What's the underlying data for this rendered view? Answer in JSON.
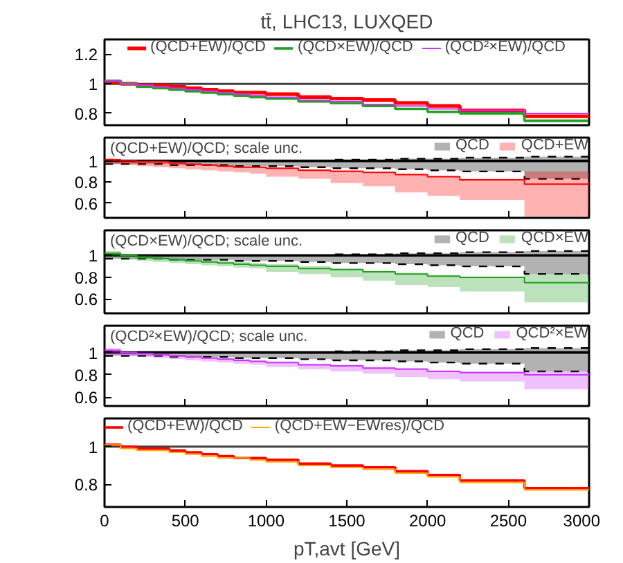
{
  "chart_data": [
    {
      "type": "step",
      "title": "tt̄, LHC13, LUXQED",
      "x": [
        0,
        100,
        200,
        300,
        400,
        500,
        600,
        700,
        800,
        900,
        1000,
        1200,
        1400,
        1600,
        1800,
        2000,
        2200,
        2600,
        3000
      ],
      "xlim": [
        0,
        3000
      ],
      "xticks": [
        0,
        500,
        1000,
        1500,
        2000,
        2500,
        3000
      ],
      "ylim": [
        0.72,
        1.3
      ],
      "yticks": [
        0.8,
        1,
        1.2
      ],
      "tick_labels": "y",
      "legend": "top",
      "ref_lines": [
        {
          "axis": "y",
          "value": 1,
          "color": "#404040"
        }
      ],
      "series": [
        {
          "name": "(QCD+EW)/QCD",
          "color": "#ff0000",
          "values": [
            1.01,
            1.0,
            0.99,
            0.99,
            0.98,
            0.97,
            0.96,
            0.95,
            0.94,
            0.94,
            0.93,
            0.91,
            0.9,
            0.89,
            0.87,
            0.85,
            0.82,
            0.78,
            0.78
          ]
        },
        {
          "name": "(QCD×EW)/QCD",
          "color": "#22a022",
          "values": [
            1.02,
            1.0,
            0.98,
            0.97,
            0.96,
            0.95,
            0.94,
            0.93,
            0.92,
            0.91,
            0.9,
            0.88,
            0.87,
            0.85,
            0.83,
            0.81,
            0.8,
            0.75,
            0.75
          ]
        },
        {
          "name": "(QCD²×EW)/QCD",
          "color": "#cc33ff",
          "values": [
            1.02,
            1.0,
            0.99,
            0.98,
            0.97,
            0.96,
            0.95,
            0.94,
            0.93,
            0.92,
            0.91,
            0.89,
            0.88,
            0.86,
            0.85,
            0.83,
            0.82,
            0.8,
            0.8
          ]
        }
      ]
    },
    {
      "type": "step",
      "legend_title": "(QCD+EW)/QCD; scale unc.",
      "x": [
        0,
        100,
        200,
        300,
        400,
        500,
        600,
        700,
        800,
        900,
        1000,
        1200,
        1400,
        1600,
        1800,
        2000,
        2200,
        2600,
        3000
      ],
      "xlim": [
        0,
        3000
      ],
      "xticks": [
        0,
        500,
        1000,
        1500,
        2000,
        2500,
        3000
      ],
      "ylim": [
        0.46,
        1.22
      ],
      "yticks": [
        0.6,
        0.8,
        1
      ],
      "tick_labels": "y",
      "legend": "top right",
      "series": [
        {
          "name": "QCD",
          "color": "#000000",
          "values": [
            1,
            1,
            1,
            1,
            1,
            1,
            1,
            1,
            1,
            1,
            1,
            1,
            1,
            1,
            1,
            1,
            1,
            1,
            1
          ],
          "lower": [
            0.97,
            0.97,
            0.97,
            0.97,
            0.96,
            0.96,
            0.96,
            0.96,
            0.95,
            0.95,
            0.95,
            0.94,
            0.93,
            0.93,
            0.92,
            0.91,
            0.9,
            0.83,
            0.83
          ],
          "upper": [
            1.01,
            1.0,
            1.0,
            1.0,
            1.0,
            1.0,
            1.0,
            1.0,
            1.0,
            1.0,
            1.0,
            1.0,
            1.01,
            1.01,
            1.02,
            1.02,
            1.03,
            1.04,
            1.04
          ]
        },
        {
          "color": "#000000",
          "line_style": "dashed",
          "values": [
            0.97,
            0.97,
            0.97,
            0.97,
            0.96,
            0.96,
            0.96,
            0.96,
            0.95,
            0.95,
            0.95,
            0.94,
            0.93,
            0.93,
            0.92,
            0.91,
            0.9,
            0.83,
            0.83
          ]
        },
        {
          "color": "#000000",
          "line_style": "dashed",
          "values": [
            1.01,
            1.0,
            1.0,
            1.0,
            1.0,
            1.0,
            1.0,
            1.0,
            1.0,
            1.0,
            1.0,
            1.0,
            1.01,
            1.01,
            1.02,
            1.02,
            1.03,
            1.04,
            1.04
          ]
        },
        {
          "name": "QCD+EW",
          "color": "#ff0000",
          "values": [
            1.01,
            1.0,
            0.99,
            0.99,
            0.98,
            0.97,
            0.96,
            0.95,
            0.94,
            0.94,
            0.93,
            0.91,
            0.9,
            0.89,
            0.87,
            0.85,
            0.82,
            0.78,
            0.78
          ],
          "lower": [
            0.97,
            0.96,
            0.95,
            0.94,
            0.93,
            0.92,
            0.91,
            0.9,
            0.89,
            0.88,
            0.85,
            0.83,
            0.79,
            0.76,
            0.7,
            0.67,
            0.63,
            0.47,
            0.47
          ],
          "upper": [
            1.02,
            1.01,
            1.0,
            0.99,
            0.98,
            0.97,
            0.97,
            0.96,
            0.95,
            0.94,
            0.93,
            0.92,
            0.91,
            0.89,
            0.88,
            0.86,
            0.83,
            0.9,
            0.9
          ]
        }
      ]
    },
    {
      "type": "step",
      "legend_title": "(QCD×EW)/QCD; scale unc.",
      "x": [
        0,
        100,
        200,
        300,
        400,
        500,
        600,
        700,
        800,
        900,
        1000,
        1200,
        1400,
        1600,
        1800,
        2000,
        2200,
        2600,
        3000
      ],
      "xlim": [
        0,
        3000
      ],
      "xticks": [
        0,
        500,
        1000,
        1500,
        2000,
        2500,
        3000
      ],
      "ylim": [
        0.47,
        1.23
      ],
      "yticks": [
        0.6,
        0.8,
        1
      ],
      "tick_labels": "y",
      "legend": "top right",
      "series": [
        {
          "name": "QCD",
          "color": "#000000",
          "values": [
            1,
            1,
            1,
            1,
            1,
            1,
            1,
            1,
            1,
            1,
            1,
            1,
            1,
            1,
            1,
            1,
            1,
            1,
            1
          ],
          "lower": [
            0.97,
            0.97,
            0.97,
            0.97,
            0.96,
            0.96,
            0.96,
            0.96,
            0.95,
            0.95,
            0.95,
            0.94,
            0.93,
            0.93,
            0.92,
            0.91,
            0.9,
            0.83,
            0.83
          ],
          "upper": [
            1.01,
            1.0,
            1.0,
            1.0,
            1.0,
            1.0,
            1.0,
            1.0,
            1.0,
            1.0,
            1.0,
            1.0,
            1.01,
            1.01,
            1.02,
            1.02,
            1.03,
            1.04,
            1.04
          ]
        },
        {
          "color": "#000000",
          "line_style": "dashed",
          "values": [
            0.97,
            0.97,
            0.97,
            0.97,
            0.96,
            0.96,
            0.96,
            0.96,
            0.95,
            0.95,
            0.95,
            0.94,
            0.93,
            0.93,
            0.92,
            0.91,
            0.9,
            0.83,
            0.83
          ]
        },
        {
          "color": "#000000",
          "line_style": "dashed",
          "values": [
            1.01,
            1.0,
            1.0,
            1.0,
            1.0,
            1.0,
            1.0,
            1.0,
            1.0,
            1.0,
            1.0,
            1.0,
            1.01,
            1.01,
            1.02,
            1.02,
            1.03,
            1.04,
            1.04
          ]
        },
        {
          "name": "QCD×EW",
          "color": "#22a022",
          "values": [
            1.02,
            1.0,
            0.98,
            0.97,
            0.96,
            0.95,
            0.94,
            0.93,
            0.92,
            0.91,
            0.9,
            0.88,
            0.87,
            0.85,
            0.83,
            0.81,
            0.8,
            0.75,
            0.75
          ],
          "lower": [
            0.98,
            0.96,
            0.95,
            0.94,
            0.93,
            0.92,
            0.91,
            0.9,
            0.89,
            0.88,
            0.85,
            0.83,
            0.8,
            0.77,
            0.73,
            0.71,
            0.67,
            0.57,
            0.57
          ],
          "upper": [
            1.04,
            1.01,
            1.0,
            0.99,
            0.98,
            0.97,
            0.96,
            0.95,
            0.94,
            0.93,
            0.92,
            0.9,
            0.88,
            0.86,
            0.84,
            0.82,
            0.8,
            0.83,
            0.83
          ]
        }
      ]
    },
    {
      "type": "step",
      "legend_title": "(QCD²×EW)/QCD; scale unc.",
      "x": [
        0,
        100,
        200,
        300,
        400,
        500,
        600,
        700,
        800,
        900,
        1000,
        1200,
        1400,
        1600,
        1800,
        2000,
        2200,
        2600,
        3000
      ],
      "xlim": [
        0,
        3000
      ],
      "xticks": [
        0,
        500,
        1000,
        1500,
        2000,
        2500,
        3000
      ],
      "ylim": [
        0.52,
        1.24
      ],
      "yticks": [
        0.6,
        0.8,
        1
      ],
      "tick_labels": "y",
      "legend": "top right",
      "series": [
        {
          "name": "QCD",
          "color": "#000000",
          "values": [
            1,
            1,
            1,
            1,
            1,
            1,
            1,
            1,
            1,
            1,
            1,
            1,
            1,
            1,
            1,
            1,
            1,
            1,
            1
          ],
          "lower": [
            0.97,
            0.97,
            0.97,
            0.97,
            0.96,
            0.96,
            0.96,
            0.96,
            0.95,
            0.95,
            0.95,
            0.94,
            0.93,
            0.93,
            0.92,
            0.91,
            0.9,
            0.83,
            0.83
          ],
          "upper": [
            1.01,
            1.0,
            1.0,
            1.0,
            1.0,
            1.0,
            1.0,
            1.0,
            1.0,
            1.0,
            1.0,
            1.0,
            1.01,
            1.01,
            1.02,
            1.02,
            1.03,
            1.04,
            1.04
          ]
        },
        {
          "color": "#000000",
          "line_style": "dashed",
          "values": [
            0.97,
            0.97,
            0.97,
            0.97,
            0.96,
            0.96,
            0.96,
            0.96,
            0.95,
            0.95,
            0.95,
            0.94,
            0.93,
            0.93,
            0.92,
            0.91,
            0.9,
            0.83,
            0.83
          ]
        },
        {
          "color": "#000000",
          "line_style": "dashed",
          "values": [
            1.01,
            1.0,
            1.0,
            1.0,
            1.0,
            1.0,
            1.0,
            1.0,
            1.0,
            1.0,
            1.0,
            1.0,
            1.01,
            1.01,
            1.02,
            1.02,
            1.03,
            1.04,
            1.04
          ]
        },
        {
          "name": "QCD²×EW",
          "color": "#cc33ff",
          "values": [
            1.02,
            1.0,
            0.99,
            0.98,
            0.97,
            0.96,
            0.95,
            0.94,
            0.93,
            0.92,
            0.91,
            0.89,
            0.88,
            0.86,
            0.85,
            0.83,
            0.82,
            0.8,
            0.8
          ],
          "lower": [
            0.98,
            0.97,
            0.96,
            0.95,
            0.94,
            0.93,
            0.92,
            0.91,
            0.9,
            0.89,
            0.87,
            0.85,
            0.83,
            0.81,
            0.78,
            0.76,
            0.74,
            0.67,
            0.67
          ],
          "upper": [
            1.04,
            1.01,
            1.0,
            0.99,
            0.98,
            0.97,
            0.96,
            0.95,
            0.94,
            0.93,
            0.92,
            0.9,
            0.89,
            0.87,
            0.86,
            0.84,
            0.83,
            0.83,
            0.83
          ]
        }
      ]
    },
    {
      "type": "step",
      "xlabel": "pT,avt [GeV]",
      "x": [
        0,
        100,
        200,
        300,
        400,
        500,
        600,
        700,
        800,
        900,
        1000,
        1200,
        1400,
        1600,
        1800,
        2000,
        2200,
        2600,
        3000
      ],
      "xlim": [
        0,
        3000
      ],
      "xticks": [
        0,
        500,
        1000,
        1500,
        2000,
        2500,
        3000
      ],
      "ylim": [
        0.68,
        1.15
      ],
      "yticks": [
        0.8,
        1
      ],
      "legend": "top left",
      "ref_lines": [
        {
          "axis": "y",
          "value": 1,
          "color": "#404040"
        }
      ],
      "series": [
        {
          "name": "(QCD+EW)/QCD",
          "color": "#ff0000",
          "values": [
            1.01,
            1.0,
            0.99,
            0.99,
            0.98,
            0.97,
            0.96,
            0.95,
            0.94,
            0.94,
            0.93,
            0.91,
            0.9,
            0.89,
            0.87,
            0.85,
            0.82,
            0.78,
            0.78
          ]
        },
        {
          "name": "(QCD+EW−EWres)/QCD",
          "color": "#ffa500",
          "values": [
            1.01,
            0.99,
            0.98,
            0.98,
            0.97,
            0.96,
            0.95,
            0.94,
            0.94,
            0.93,
            0.92,
            0.9,
            0.89,
            0.88,
            0.86,
            0.84,
            0.81,
            0.77,
            0.77
          ]
        }
      ]
    }
  ]
}
